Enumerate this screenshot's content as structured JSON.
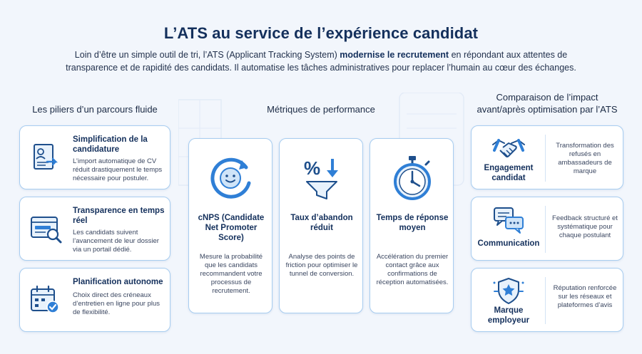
{
  "title": "L’ATS au service de l’expérience candidat",
  "intro": {
    "before": "Loin d’être un simple outil de tri, l’ATS (Applicant Tracking System) ",
    "bold": "modernise le recrutement",
    "after_line1": " en répondant aux attentes de",
    "line2": "transparence et de rapidité des candidats. Il automatise les tâches administratives pour replacer l’humain au cœur des échanges."
  },
  "left": {
    "title": "Les piliers d’un parcours fluide",
    "cards": [
      {
        "icon": "document-import-icon",
        "title": "Simplification de la candidature",
        "desc": "L’import automatique de CV réduit drastiquement le temps nécessaire pour postuler."
      },
      {
        "icon": "browser-search-icon",
        "title": "Transparence en temps réel",
        "desc": "Les candidats suivent l’avancement de leur dossier via un portail dédié."
      },
      {
        "icon": "calendar-check-icon",
        "title": "Planification autonome",
        "desc": "Choix direct des créneaux d’entretien en ligne pour plus de flexibilité."
      }
    ]
  },
  "middle": {
    "title": "Métriques de performance",
    "cards": [
      {
        "icon": "smiley-cycle-icon",
        "title": "cNPS (Candidate Net Promoter Score)",
        "desc": "Mesure la probabilité que les candidats recommandent votre processus de recrutement."
      },
      {
        "icon": "percent-funnel-icon",
        "title": "Taux d’abandon réduit",
        "desc": "Analyse des points de friction pour optimiser le tunnel de conversion."
      },
      {
        "icon": "stopwatch-icon",
        "title": "Temps de réponse moyen",
        "desc": "Accélération du premier contact grâce aux confirmations de réception automatisées."
      }
    ]
  },
  "right": {
    "title": "Comparaison de l’impact avant/après optimisation par l’ATS",
    "cards": [
      {
        "icon": "handshake-icon",
        "title": "Engagement candidat",
        "desc": "Transformation des refusés en ambassadeurs de marque"
      },
      {
        "icon": "chat-bubbles-icon",
        "title": "Communication",
        "desc": "Feedback structuré et systématique pour chaque postulant"
      },
      {
        "icon": "shield-star-icon",
        "title": "Marque employeur",
        "desc": "Réputation renforcée sur les réseaux et plateformes d’avis"
      }
    ]
  },
  "colors": {
    "accent": "#2f7fd6",
    "title": "#14305c",
    "border": "#a8cdf0",
    "background": "#f2f6fc"
  }
}
